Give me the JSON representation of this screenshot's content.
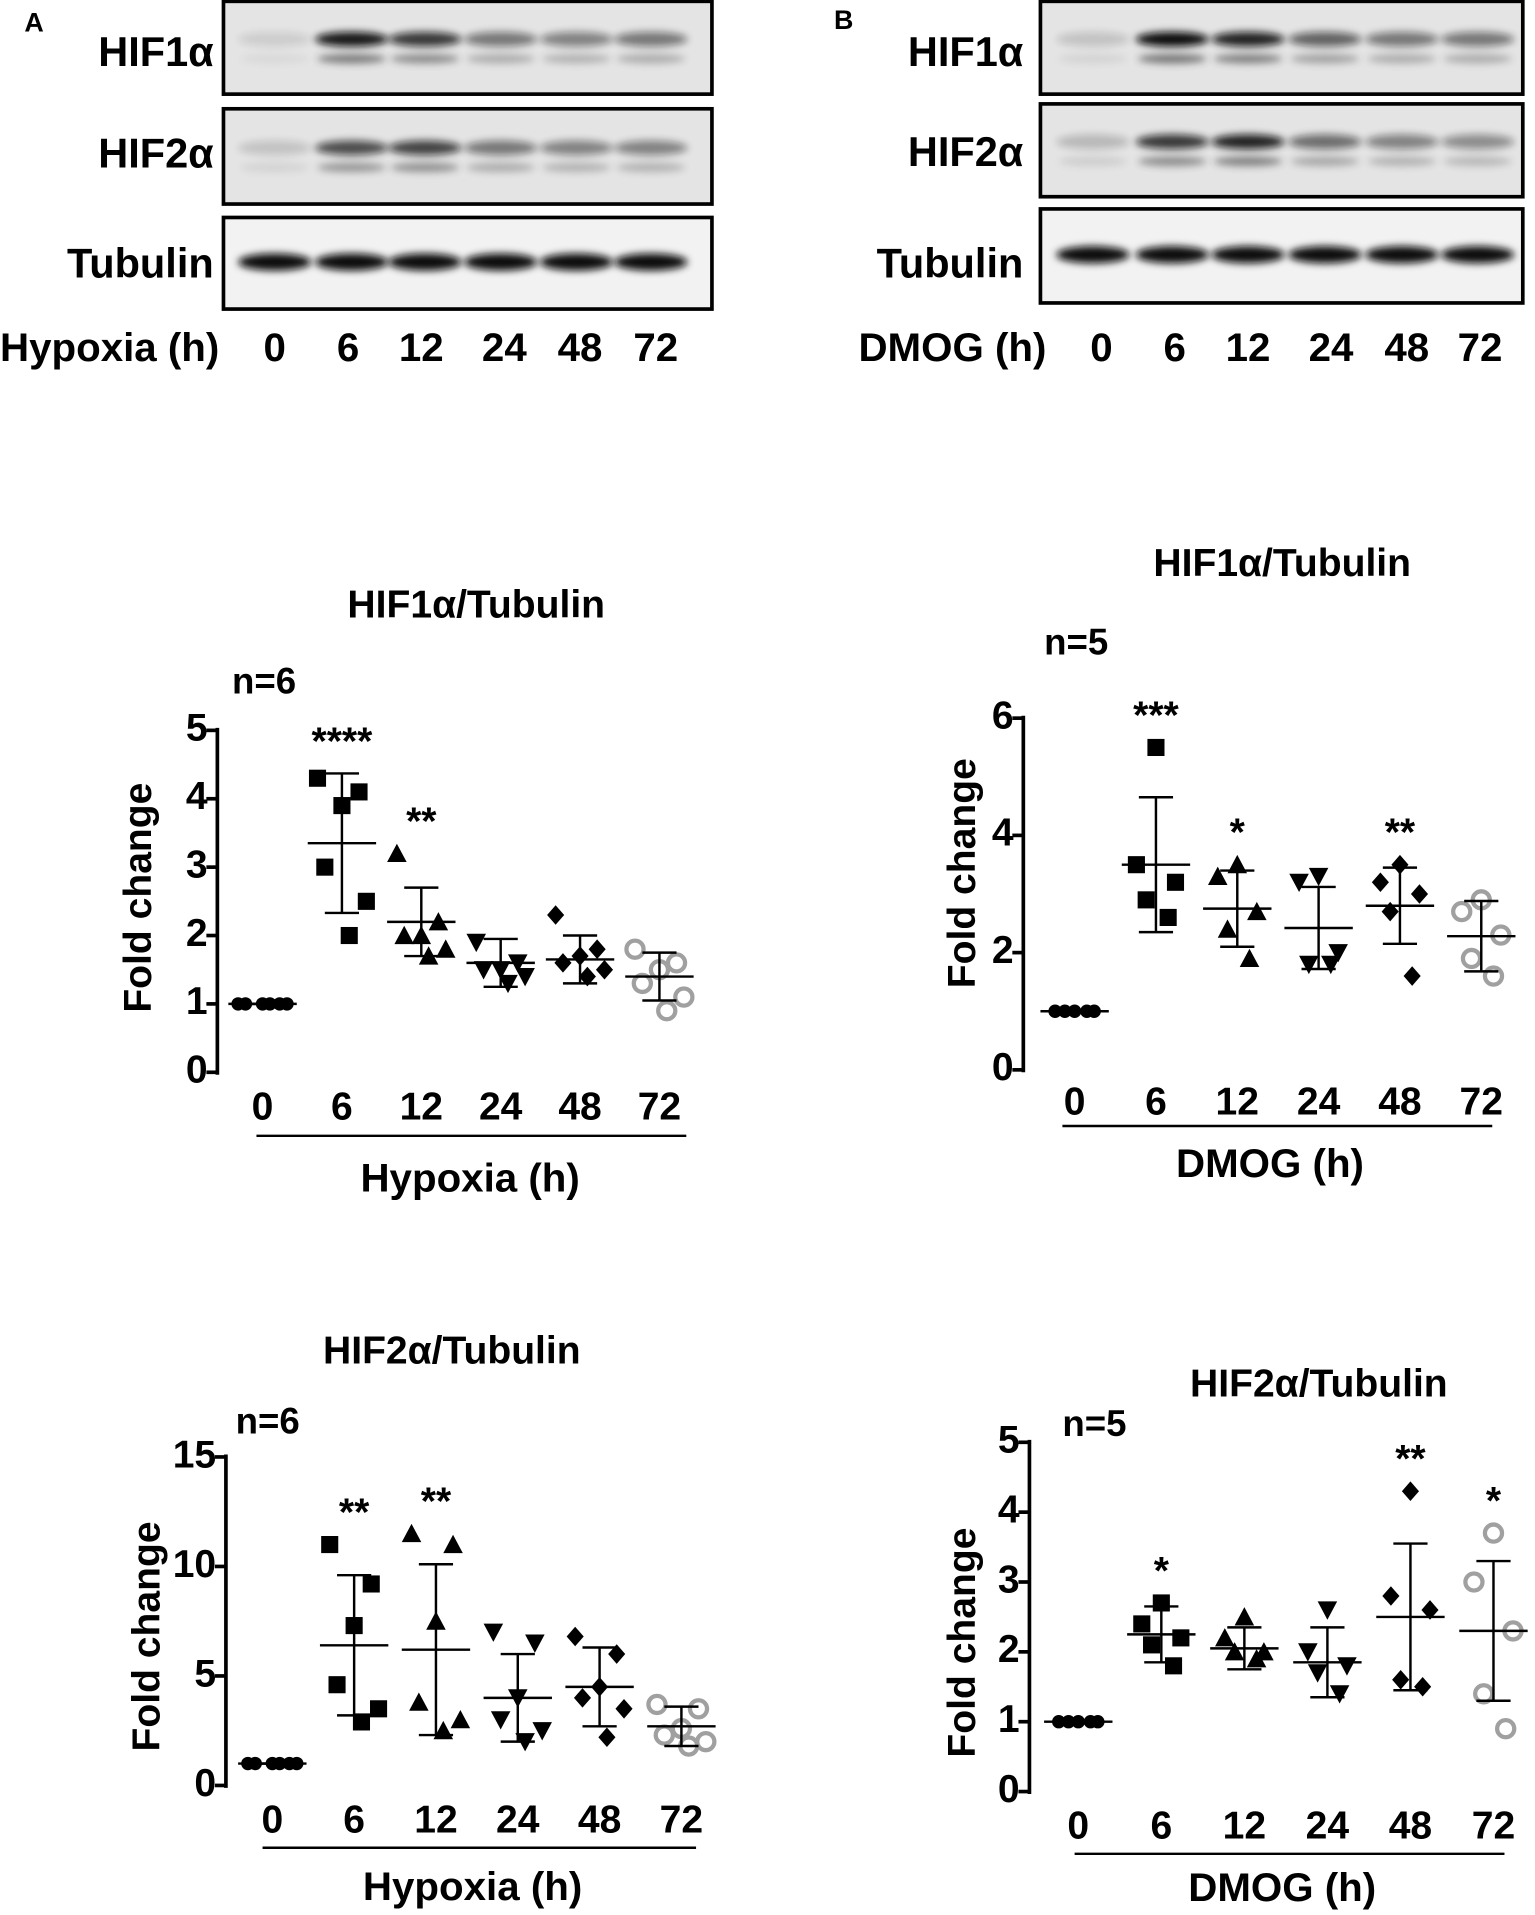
{
  "blots": [
    {
      "panel": "A",
      "rows": [
        "HIF1α",
        "HIF2α",
        "Tubulin"
      ],
      "xlabel": "Hypoxia (h)",
      "lanes": [
        "0",
        "6",
        "12",
        "24",
        "48",
        "72"
      ]
    },
    {
      "panel": "B",
      "rows": [
        "HIF1α",
        "HIF2α",
        "Tubulin"
      ],
      "xlabel": "DMOG (h)",
      "lanes": [
        "0",
        "6",
        "12",
        "24",
        "48",
        "72"
      ]
    }
  ],
  "chart_data": [
    {
      "type": "dot",
      "title": "HIF1α/Tubulin",
      "note": "n=6",
      "xlabel": "Hypoxia (h)",
      "ylabel": "Fold change",
      "categories": [
        "0",
        "6",
        "12",
        "24",
        "48",
        "72"
      ],
      "ylim": [
        0,
        5
      ],
      "yticks": [
        0,
        1,
        2,
        3,
        4,
        5
      ],
      "groups": [
        {
          "marker": "circle",
          "color": "#000000",
          "values": [
            1,
            1,
            1,
            1,
            1,
            1
          ],
          "mean": 1,
          "sd": 0
        },
        {
          "marker": "square",
          "color": "#000000",
          "values": [
            4.3,
            4.1,
            3.9,
            3.0,
            2.5,
            2.0
          ],
          "mean": 3.35,
          "sd": 1.02
        },
        {
          "marker": "triangle-up",
          "color": "#000000",
          "values": [
            3.2,
            2.2,
            2.0,
            2.0,
            1.8,
            1.7
          ],
          "mean": 2.2,
          "sd": 0.5
        },
        {
          "marker": "triangle-down",
          "color": "#000000",
          "values": [
            1.9,
            1.6,
            1.5,
            1.5,
            1.4,
            1.3
          ],
          "mean": 1.6,
          "sd": 0.35
        },
        {
          "marker": "diamond",
          "color": "#000000",
          "values": [
            2.3,
            1.8,
            1.7,
            1.6,
            1.5,
            1.4
          ],
          "mean": 1.65,
          "sd": 0.35
        },
        {
          "marker": "open-circle",
          "color": "#a0a0a0",
          "values": [
            1.8,
            1.6,
            1.5,
            1.3,
            1.1,
            0.9
          ],
          "mean": 1.4,
          "sd": 0.35
        }
      ],
      "annotations": [
        null,
        "****",
        "**",
        null,
        null,
        null
      ]
    },
    {
      "type": "dot",
      "title": "HIF1α/Tubulin",
      "note": "n=5",
      "xlabel": "DMOG (h)",
      "ylabel": "Fold change",
      "categories": [
        "0",
        "6",
        "12",
        "24",
        "48",
        "72"
      ],
      "ylim": [
        0,
        6
      ],
      "yticks": [
        0,
        2,
        4,
        6
      ],
      "groups": [
        {
          "marker": "circle",
          "color": "#000000",
          "values": [
            1,
            1,
            1,
            1,
            1
          ],
          "mean": 1,
          "sd": 0
        },
        {
          "marker": "square",
          "color": "#000000",
          "values": [
            5.5,
            3.5,
            3.2,
            2.9,
            2.6
          ],
          "mean": 3.5,
          "sd": 1.15
        },
        {
          "marker": "triangle-up",
          "color": "#000000",
          "values": [
            3.5,
            3.3,
            2.7,
            2.4,
            1.9
          ],
          "mean": 2.75,
          "sd": 0.65
        },
        {
          "marker": "triangle-down",
          "color": "#000000",
          "values": [
            3.3,
            3.2,
            2.0,
            1.8,
            1.8
          ],
          "mean": 2.42,
          "sd": 0.7
        },
        {
          "marker": "diamond",
          "color": "#000000",
          "values": [
            3.5,
            3.2,
            3.0,
            2.7,
            1.6
          ],
          "mean": 2.8,
          "sd": 0.65
        },
        {
          "marker": "open-circle",
          "color": "#a0a0a0",
          "values": [
            2.9,
            2.7,
            2.3,
            1.9,
            1.6
          ],
          "mean": 2.28,
          "sd": 0.6
        }
      ],
      "annotations": [
        null,
        "***",
        "*",
        null,
        "**",
        null
      ]
    },
    {
      "type": "dot",
      "title": "HIF2α/Tubulin",
      "note": "n=6",
      "xlabel": "Hypoxia (h)",
      "ylabel": "Fold change",
      "categories": [
        "0",
        "6",
        "12",
        "24",
        "48",
        "72"
      ],
      "ylim": [
        0,
        15
      ],
      "yticks": [
        0,
        5,
        10,
        15
      ],
      "groups": [
        {
          "marker": "circle",
          "color": "#000000",
          "values": [
            1,
            1,
            1,
            1,
            1,
            1
          ],
          "mean": 1,
          "sd": 0
        },
        {
          "marker": "square",
          "color": "#000000",
          "values": [
            11.0,
            9.2,
            7.3,
            4.6,
            3.5,
            2.9
          ],
          "mean": 6.4,
          "sd": 3.2
        },
        {
          "marker": "triangle-up",
          "color": "#000000",
          "values": [
            11.5,
            11.0,
            7.5,
            3.8,
            3.0,
            2.5
          ],
          "mean": 6.2,
          "sd": 3.9
        },
        {
          "marker": "triangle-down",
          "color": "#000000",
          "values": [
            7.0,
            6.5,
            4.0,
            3.0,
            2.5,
            2.0
          ],
          "mean": 4.0,
          "sd": 2.0
        },
        {
          "marker": "diamond",
          "color": "#000000",
          "values": [
            6.8,
            6.0,
            4.5,
            4.0,
            3.5,
            2.2
          ],
          "mean": 4.5,
          "sd": 1.8
        },
        {
          "marker": "open-circle",
          "color": "#a0a0a0",
          "values": [
            3.7,
            3.5,
            2.6,
            2.3,
            2.0,
            1.8
          ],
          "mean": 2.7,
          "sd": 0.9
        }
      ],
      "annotations": [
        null,
        "**",
        "**",
        null,
        null,
        null
      ]
    },
    {
      "type": "dot",
      "title": "HIF2α/Tubulin",
      "note": "n=5",
      "xlabel": "DMOG (h)",
      "ylabel": "Fold change",
      "categories": [
        "0",
        "6",
        "12",
        "24",
        "48",
        "72"
      ],
      "ylim": [
        0,
        5
      ],
      "yticks": [
        0,
        1,
        2,
        3,
        4,
        5
      ],
      "groups": [
        {
          "marker": "circle",
          "color": "#000000",
          "values": [
            1,
            1,
            1,
            1,
            1
          ],
          "mean": 1,
          "sd": 0
        },
        {
          "marker": "square",
          "color": "#000000",
          "values": [
            2.7,
            2.4,
            2.2,
            2.1,
            1.8
          ],
          "mean": 2.25,
          "sd": 0.4
        },
        {
          "marker": "triangle-up",
          "color": "#000000",
          "values": [
            2.5,
            2.2,
            2.0,
            2.0,
            1.9
          ],
          "mean": 2.05,
          "sd": 0.3
        },
        {
          "marker": "triangle-down",
          "color": "#000000",
          "values": [
            2.6,
            2.0,
            1.8,
            1.7,
            1.4
          ],
          "mean": 1.85,
          "sd": 0.5
        },
        {
          "marker": "diamond",
          "color": "#000000",
          "values": [
            4.3,
            2.8,
            2.6,
            1.6,
            1.5
          ],
          "mean": 2.5,
          "sd": 1.05
        },
        {
          "marker": "open-circle",
          "color": "#a0a0a0",
          "values": [
            3.7,
            3.0,
            2.3,
            1.4,
            0.9
          ],
          "mean": 2.3,
          "sd": 1.0
        }
      ],
      "annotations": [
        null,
        "*",
        null,
        null,
        "**",
        "*"
      ]
    }
  ]
}
